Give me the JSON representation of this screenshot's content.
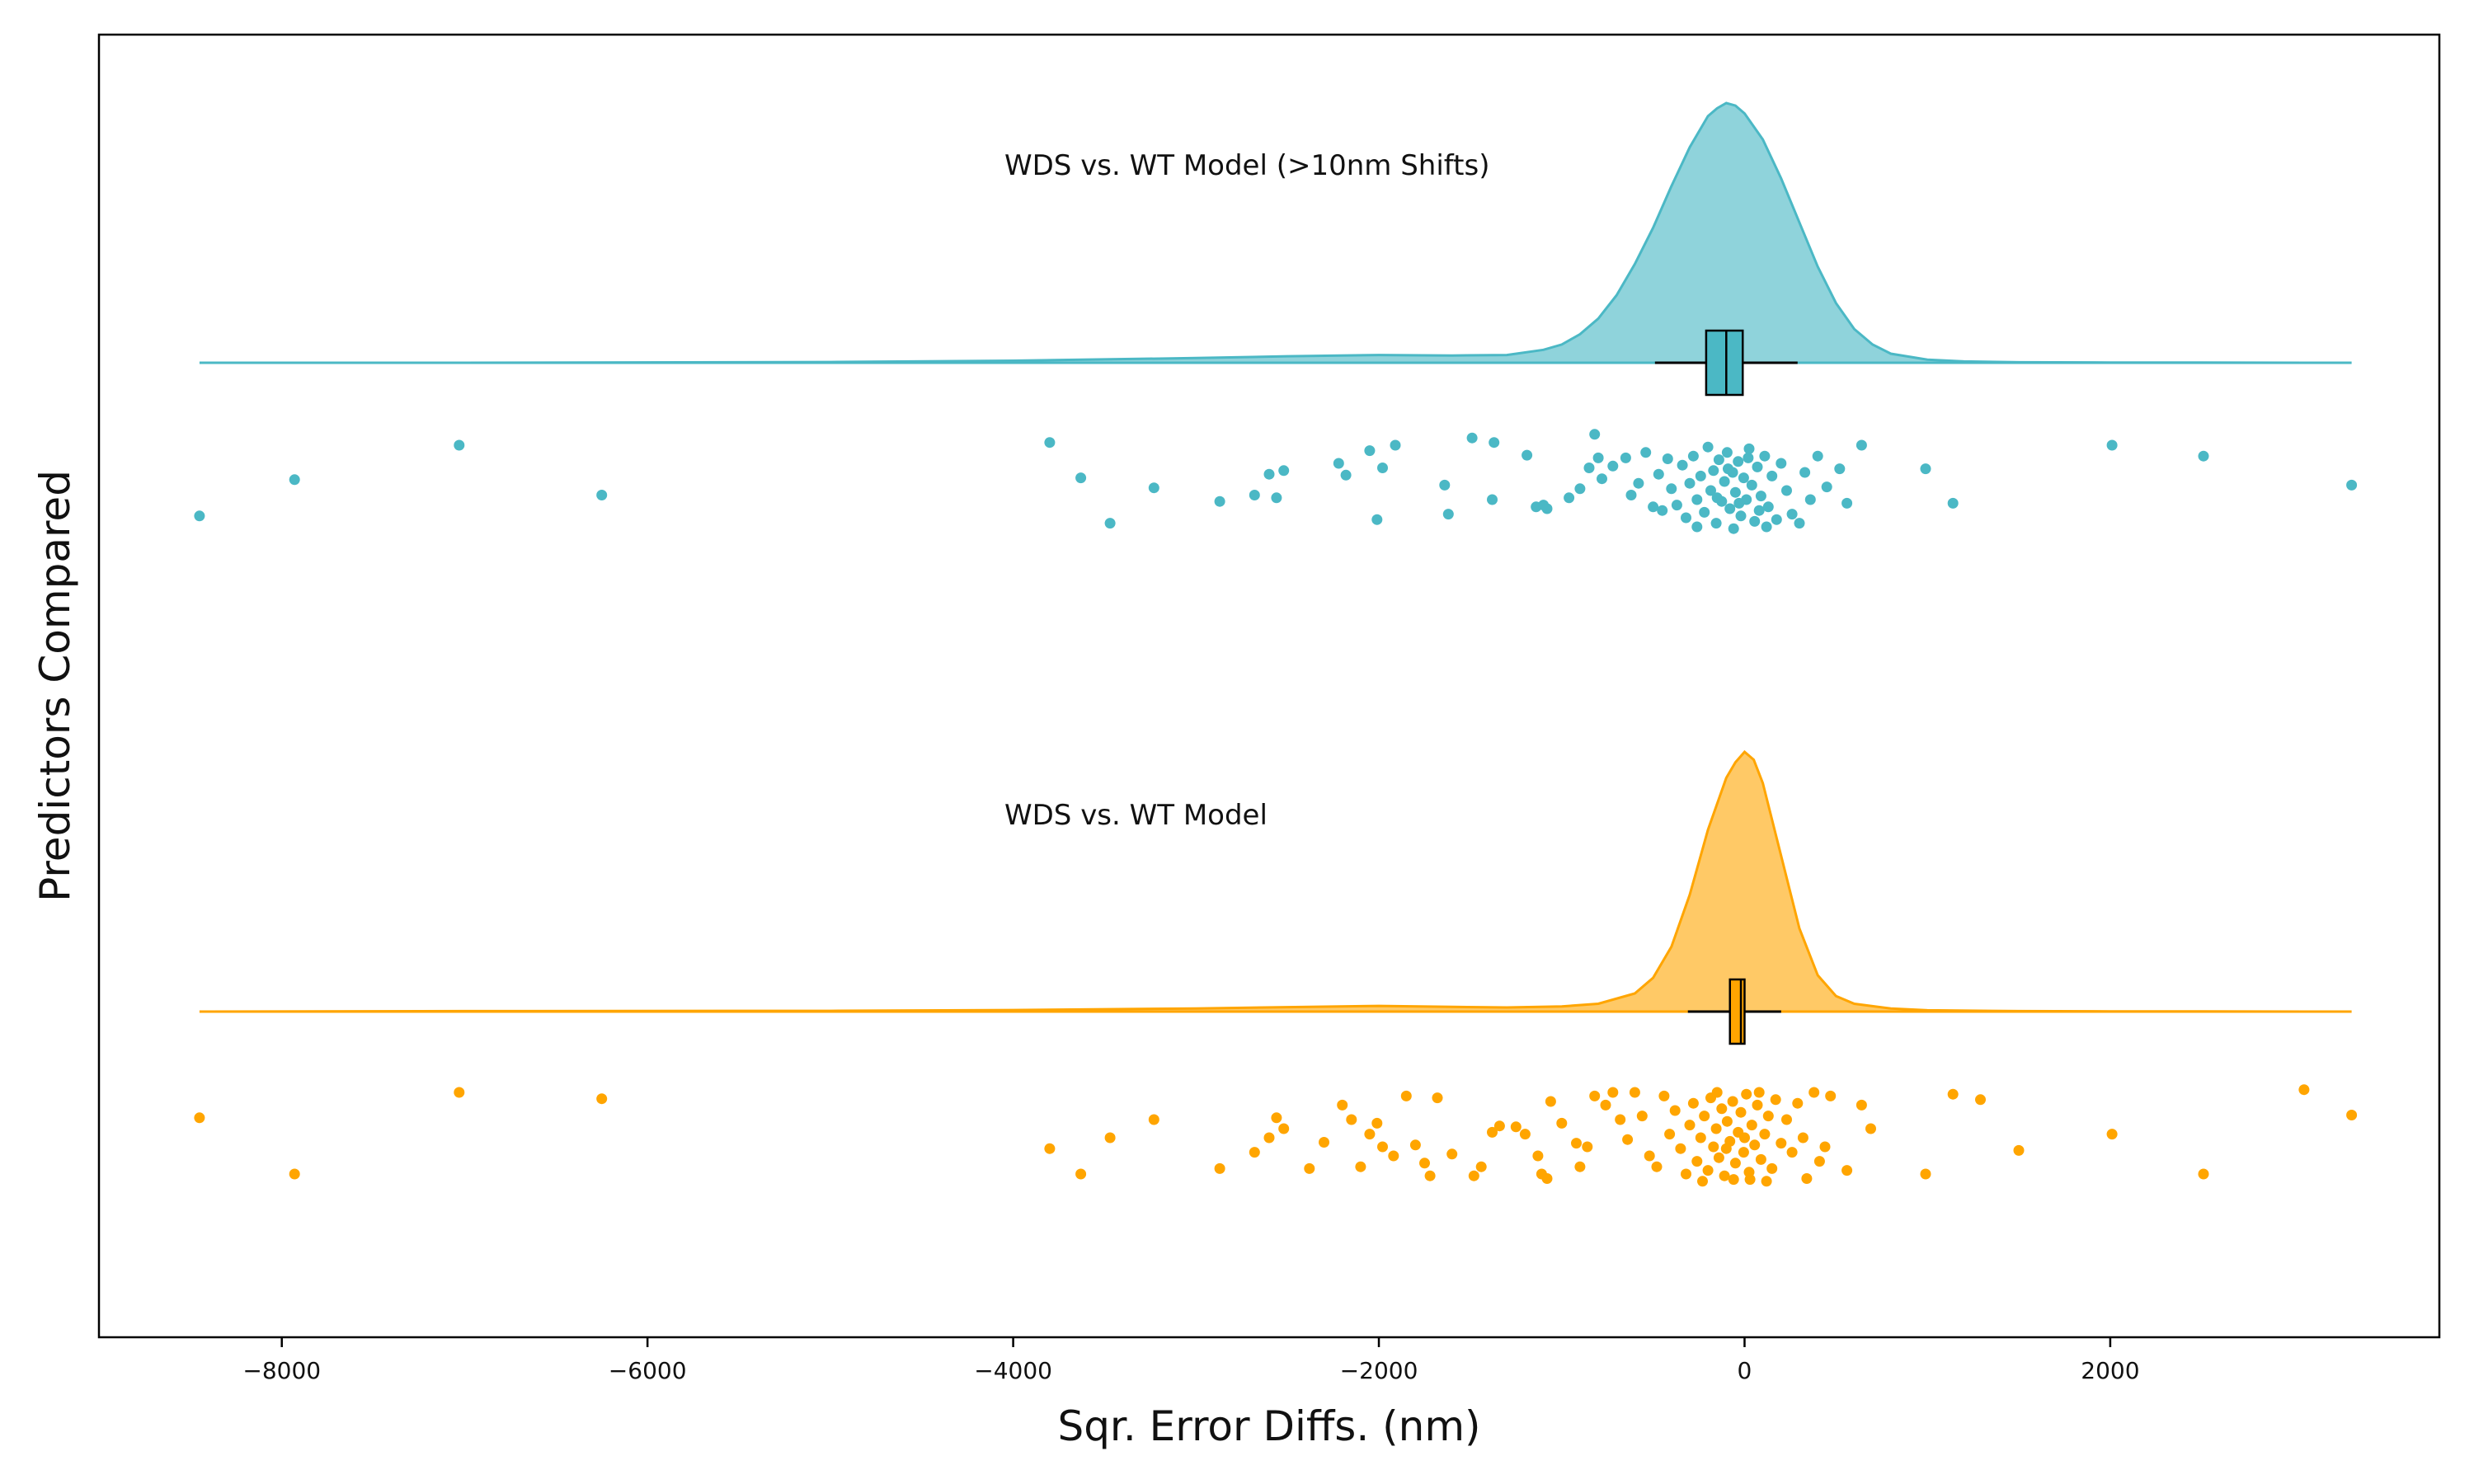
{
  "chart_data": {
    "type": "raincloud",
    "xlabel": "Sqr. Error Diffs. (nm)",
    "ylabel": "Predictors Compared",
    "xlim": [
      -9000,
      3800
    ],
    "xticks": [
      -8000,
      -6000,
      -4000,
      -2000,
      0,
      2000
    ],
    "xtick_labels": [
      "−8000",
      "−6000",
      "−4000",
      "−2000",
      "0",
      "2000"
    ],
    "grid": false,
    "legend": "none",
    "groups": [
      {
        "label": "WDS vs. WT Model (>10nm Shifts)",
        "color": "#4bb8c5",
        "density": {
          "x": [
            -8450,
            -7000,
            -5000,
            -4000,
            -3000,
            -2500,
            -2000,
            -1600,
            -1300,
            -1100,
            -1000,
            -900,
            -800,
            -700,
            -600,
            -500,
            -400,
            -300,
            -200,
            -150,
            -100,
            -50,
            0,
            100,
            200,
            300,
            400,
            500,
            600,
            700,
            800,
            1000,
            1200,
            1500,
            2000,
            3320
          ],
          "y": [
            0,
            0,
            0.003,
            0.008,
            0.018,
            0.025,
            0.03,
            0.028,
            0.03,
            0.05,
            0.07,
            0.11,
            0.17,
            0.26,
            0.38,
            0.52,
            0.68,
            0.83,
            0.95,
            0.98,
            1.0,
            0.99,
            0.96,
            0.86,
            0.71,
            0.54,
            0.37,
            0.23,
            0.13,
            0.07,
            0.035,
            0.012,
            0.005,
            0.002,
            0.001,
            0
          ]
        },
        "box": {
          "whisker_low": -490,
          "q1": -210,
          "median": -100,
          "q3": -10,
          "whisker_high": 290
        },
        "points": [
          {
            "x": -8450,
            "j": 0.78
          },
          {
            "x": -7930,
            "j": 0.38
          },
          {
            "x": -7030,
            "j": 0.0
          },
          {
            "x": -6250,
            "j": 0.55
          },
          {
            "x": -3800,
            "j": -0.03
          },
          {
            "x": -3630,
            "j": 0.36
          },
          {
            "x": -3470,
            "j": 0.86
          },
          {
            "x": -3230,
            "j": 0.47
          },
          {
            "x": -2870,
            "j": 0.62
          },
          {
            "x": -2680,
            "j": 0.55
          },
          {
            "x": -2600,
            "j": 0.32
          },
          {
            "x": -2560,
            "j": 0.58
          },
          {
            "x": -2520,
            "j": 0.28
          },
          {
            "x": -2220,
            "j": 0.2
          },
          {
            "x": -2180,
            "j": 0.33
          },
          {
            "x": -2050,
            "j": 0.06
          },
          {
            "x": -2010,
            "j": 0.82
          },
          {
            "x": -1980,
            "j": 0.25
          },
          {
            "x": -1910,
            "j": 0.0
          },
          {
            "x": -1640,
            "j": 0.44
          },
          {
            "x": -1620,
            "j": 0.76
          },
          {
            "x": -1490,
            "j": -0.08
          },
          {
            "x": -1380,
            "j": 0.6
          },
          {
            "x": -1370,
            "j": -0.03
          },
          {
            "x": -1190,
            "j": 0.11
          },
          {
            "x": -1140,
            "j": 0.68
          },
          {
            "x": -1100,
            "j": 0.66
          },
          {
            "x": -1080,
            "j": 0.7
          },
          {
            "x": -960,
            "j": 0.58
          },
          {
            "x": -900,
            "j": 0.48
          },
          {
            "x": -850,
            "j": 0.25
          },
          {
            "x": -820,
            "j": -0.12
          },
          {
            "x": -800,
            "j": 0.14
          },
          {
            "x": -780,
            "j": 0.37
          },
          {
            "x": -720,
            "j": 0.23
          },
          {
            "x": -650,
            "j": 0.14
          },
          {
            "x": -620,
            "j": 0.55
          },
          {
            "x": -580,
            "j": 0.42
          },
          {
            "x": -540,
            "j": 0.08
          },
          {
            "x": -500,
            "j": 0.68
          },
          {
            "x": -470,
            "j": 0.32
          },
          {
            "x": -450,
            "j": 0.72
          },
          {
            "x": -420,
            "j": 0.15
          },
          {
            "x": -400,
            "j": 0.48
          },
          {
            "x": -370,
            "j": 0.66
          },
          {
            "x": -340,
            "j": 0.22
          },
          {
            "x": -320,
            "j": 0.8
          },
          {
            "x": -300,
            "j": 0.42
          },
          {
            "x": -280,
            "j": 0.12
          },
          {
            "x": -260,
            "j": 0.6
          },
          {
            "x": -240,
            "j": 0.34
          },
          {
            "x": -220,
            "j": 0.74
          },
          {
            "x": -200,
            "j": 0.02
          },
          {
            "x": -185,
            "j": 0.5
          },
          {
            "x": -170,
            "j": 0.28
          },
          {
            "x": -155,
            "j": 0.86
          },
          {
            "x": -140,
            "j": 0.16
          },
          {
            "x": -125,
            "j": 0.62
          },
          {
            "x": -110,
            "j": 0.4
          },
          {
            "x": -95,
            "j": 0.08
          },
          {
            "x": -80,
            "j": 0.7
          },
          {
            "x": -65,
            "j": 0.3
          },
          {
            "x": -50,
            "j": 0.52
          },
          {
            "x": -35,
            "j": 0.18
          },
          {
            "x": -20,
            "j": 0.78
          },
          {
            "x": -5,
            "j": 0.36
          },
          {
            "x": 10,
            "j": 0.6
          },
          {
            "x": 25,
            "j": 0.04
          },
          {
            "x": 40,
            "j": 0.44
          },
          {
            "x": 55,
            "j": 0.84
          },
          {
            "x": 70,
            "j": 0.24
          },
          {
            "x": 90,
            "j": 0.56
          },
          {
            "x": 110,
            "j": 0.12
          },
          {
            "x": 130,
            "j": 0.68
          },
          {
            "x": 150,
            "j": 0.34
          },
          {
            "x": 175,
            "j": 0.82
          },
          {
            "x": 200,
            "j": 0.2
          },
          {
            "x": 230,
            "j": 0.5
          },
          {
            "x": 260,
            "j": 0.76
          },
          {
            "x": 300,
            "j": 0.86
          },
          {
            "x": 330,
            "j": 0.3
          },
          {
            "x": 360,
            "j": 0.6
          },
          {
            "x": 400,
            "j": 0.12
          },
          {
            "x": 450,
            "j": 0.46
          },
          {
            "x": 520,
            "j": 0.26
          },
          {
            "x": 560,
            "j": 0.64
          },
          {
            "x": 640,
            "j": 0.0
          },
          {
            "x": 990,
            "j": 0.26
          },
          {
            "x": 1140,
            "j": 0.64
          },
          {
            "x": 2010,
            "j": 0.0
          },
          {
            "x": 2510,
            "j": 0.12
          },
          {
            "x": 3320,
            "j": 0.44
          },
          {
            "x": -150,
            "j": 0.58
          },
          {
            "x": -90,
            "j": 0.26
          },
          {
            "x": -30,
            "j": 0.64
          },
          {
            "x": 20,
            "j": 0.14
          },
          {
            "x": 80,
            "j": 0.72
          },
          {
            "x": -260,
            "j": 0.9
          },
          {
            "x": -60,
            "j": 0.92
          },
          {
            "x": 120,
            "j": 0.9
          }
        ]
      },
      {
        "label": "WDS vs. WT Model",
        "color": "#ffa500",
        "density": {
          "x": [
            -8450,
            -7000,
            -5000,
            -4000,
            -3000,
            -2500,
            -2000,
            -1600,
            -1300,
            -1000,
            -800,
            -600,
            -500,
            -400,
            -300,
            -200,
            -100,
            -50,
            0,
            50,
            100,
            200,
            300,
            400,
            500,
            600,
            800,
            1000,
            1500,
            2000,
            3320
          ],
          "y": [
            0,
            0.002,
            0.003,
            0.006,
            0.012,
            0.017,
            0.022,
            0.018,
            0.016,
            0.02,
            0.03,
            0.07,
            0.13,
            0.25,
            0.45,
            0.7,
            0.9,
            0.96,
            1.0,
            0.97,
            0.88,
            0.6,
            0.32,
            0.14,
            0.06,
            0.03,
            0.012,
            0.005,
            0.002,
            0.001,
            0
          ]
        },
        "box": {
          "whisker_low": -310,
          "q1": -80,
          "median": -20,
          "q3": 0,
          "whisker_high": 200
        },
        "points": [
          {
            "x": -8450,
            "j": 0.28
          },
          {
            "x": -7930,
            "j": 0.9
          },
          {
            "x": -7030,
            "j": 0.0
          },
          {
            "x": -6250,
            "j": 0.07
          },
          {
            "x": -3800,
            "j": 0.62
          },
          {
            "x": -3630,
            "j": 0.9
          },
          {
            "x": -3470,
            "j": 0.5
          },
          {
            "x": -3230,
            "j": 0.3
          },
          {
            "x": -2870,
            "j": 0.84
          },
          {
            "x": -2680,
            "j": 0.66
          },
          {
            "x": -2600,
            "j": 0.5
          },
          {
            "x": -2560,
            "j": 0.28
          },
          {
            "x": -2520,
            "j": 0.4
          },
          {
            "x": -2380,
            "j": 0.84
          },
          {
            "x": -2300,
            "j": 0.55
          },
          {
            "x": -2200,
            "j": 0.14
          },
          {
            "x": -2150,
            "j": 0.3
          },
          {
            "x": -2100,
            "j": 0.82
          },
          {
            "x": -2050,
            "j": 0.46
          },
          {
            "x": -2010,
            "j": 0.34
          },
          {
            "x": -1980,
            "j": 0.6
          },
          {
            "x": -1920,
            "j": 0.7
          },
          {
            "x": -1850,
            "j": 0.04
          },
          {
            "x": -1800,
            "j": 0.58
          },
          {
            "x": -1750,
            "j": 0.78
          },
          {
            "x": -1720,
            "j": 0.92
          },
          {
            "x": -1680,
            "j": 0.06
          },
          {
            "x": -1600,
            "j": 0.68
          },
          {
            "x": -1480,
            "j": 0.92
          },
          {
            "x": -1440,
            "j": 0.82
          },
          {
            "x": -1380,
            "j": 0.44
          },
          {
            "x": -1340,
            "j": 0.37
          },
          {
            "x": -1250,
            "j": 0.38
          },
          {
            "x": -1200,
            "j": 0.46
          },
          {
            "x": -1130,
            "j": 0.7
          },
          {
            "x": -1110,
            "j": 0.9
          },
          {
            "x": -1080,
            "j": 0.95
          },
          {
            "x": -1060,
            "j": 0.1
          },
          {
            "x": -1000,
            "j": 0.34
          },
          {
            "x": -920,
            "j": 0.56
          },
          {
            "x": -900,
            "j": 0.82
          },
          {
            "x": -860,
            "j": 0.6
          },
          {
            "x": -820,
            "j": 0.04
          },
          {
            "x": -760,
            "j": 0.14
          },
          {
            "x": -720,
            "j": 0.0
          },
          {
            "x": -680,
            "j": 0.3
          },
          {
            "x": -640,
            "j": 0.52
          },
          {
            "x": -600,
            "j": 0.0
          },
          {
            "x": -560,
            "j": 0.26
          },
          {
            "x": -520,
            "j": 0.7
          },
          {
            "x": -480,
            "j": 0.82
          },
          {
            "x": -440,
            "j": 0.04
          },
          {
            "x": -410,
            "j": 0.46
          },
          {
            "x": -380,
            "j": 0.2
          },
          {
            "x": -350,
            "j": 0.62
          },
          {
            "x": -320,
            "j": 0.9
          },
          {
            "x": -300,
            "j": 0.36
          },
          {
            "x": -280,
            "j": 0.12
          },
          {
            "x": -260,
            "j": 0.76
          },
          {
            "x": -240,
            "j": 0.5
          },
          {
            "x": -220,
            "j": 0.26
          },
          {
            "x": -200,
            "j": 0.86
          },
          {
            "x": -185,
            "j": 0.06
          },
          {
            "x": -170,
            "j": 0.6
          },
          {
            "x": -155,
            "j": 0.4
          },
          {
            "x": -140,
            "j": 0.72
          },
          {
            "x": -125,
            "j": 0.18
          },
          {
            "x": -110,
            "j": 0.92
          },
          {
            "x": -95,
            "j": 0.32
          },
          {
            "x": -80,
            "j": 0.54
          },
          {
            "x": -65,
            "j": 0.1
          },
          {
            "x": -50,
            "j": 0.78
          },
          {
            "x": -35,
            "j": 0.44
          },
          {
            "x": -20,
            "j": 0.22
          },
          {
            "x": -5,
            "j": 0.66
          },
          {
            "x": 10,
            "j": 0.02
          },
          {
            "x": 25,
            "j": 0.88
          },
          {
            "x": 40,
            "j": 0.36
          },
          {
            "x": 55,
            "j": 0.58
          },
          {
            "x": 70,
            "j": 0.14
          },
          {
            "x": 90,
            "j": 0.74
          },
          {
            "x": 110,
            "j": 0.46
          },
          {
            "x": 130,
            "j": 0.26
          },
          {
            "x": 150,
            "j": 0.84
          },
          {
            "x": 170,
            "j": 0.08
          },
          {
            "x": 200,
            "j": 0.56
          },
          {
            "x": 230,
            "j": 0.3
          },
          {
            "x": 260,
            "j": 0.66
          },
          {
            "x": 290,
            "j": 0.12
          },
          {
            "x": 320,
            "j": 0.5
          },
          {
            "x": 340,
            "j": 0.95
          },
          {
            "x": 380,
            "j": 0.0
          },
          {
            "x": 410,
            "j": 0.76
          },
          {
            "x": 440,
            "j": 0.6
          },
          {
            "x": 470,
            "j": 0.04
          },
          {
            "x": 560,
            "j": 0.86
          },
          {
            "x": 640,
            "j": 0.14
          },
          {
            "x": 690,
            "j": 0.4
          },
          {
            "x": 990,
            "j": 0.9
          },
          {
            "x": 1140,
            "j": 0.02
          },
          {
            "x": 1290,
            "j": 0.08
          },
          {
            "x": 1500,
            "j": 0.64
          },
          {
            "x": 2010,
            "j": 0.46
          },
          {
            "x": 2510,
            "j": 0.9
          },
          {
            "x": 3060,
            "j": -0.03
          },
          {
            "x": 3320,
            "j": 0.25
          },
          {
            "x": -150,
            "j": 0.0
          },
          {
            "x": -60,
            "j": 0.96
          },
          {
            "x": 30,
            "j": 0.96
          },
          {
            "x": 120,
            "j": 0.98
          },
          {
            "x": -230,
            "j": 0.98
          },
          {
            "x": 80,
            "j": 0.0
          },
          {
            "x": -100,
            "j": 0.62
          },
          {
            "x": 0,
            "j": 0.5
          }
        ]
      }
    ]
  }
}
